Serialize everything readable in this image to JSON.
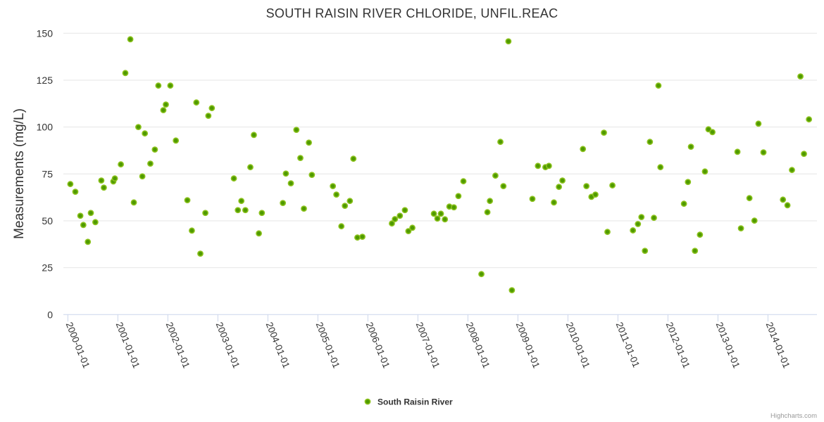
{
  "chart_data": {
    "type": "scatter",
    "title": "SOUTH RAISIN RIVER CHLORIDE, UNFIL.REAC",
    "xlabel": "",
    "ylabel": "Measurements (mg/L)",
    "ylim": [
      0,
      150
    ],
    "yticks": [
      0,
      25,
      50,
      75,
      100,
      125,
      150
    ],
    "xlim": [
      1999.911,
      2014.98
    ],
    "xticks": [
      2000,
      2001,
      2002,
      2003,
      2004,
      2005,
      2006,
      2007,
      2008,
      2009,
      2010,
      2011,
      2012,
      2013,
      2014
    ],
    "xtick_labels": [
      "2000-01-01",
      "2001-01-01",
      "2002-01-01",
      "2003-01-01",
      "2004-01-01",
      "2005-01-01",
      "2006-01-01",
      "2007-01-01",
      "2008-01-01",
      "2009-01-01",
      "2010-01-01",
      "2011-01-01",
      "2012-01-01",
      "2013-01-01",
      "2014-01-01"
    ],
    "grid": true,
    "legend_position": "bottom-center",
    "colors": {
      "marker_fill": "#4f9a00",
      "marker_line": "#8cc21e",
      "grid": "#e6e6e6",
      "axis": "#ccd6eb"
    },
    "series": [
      {
        "name": "South Raisin River",
        "points": [
          [
            2000.05,
            69.6
          ],
          [
            2000.15,
            65.5
          ],
          [
            2000.25,
            52.7
          ],
          [
            2000.31,
            47.8
          ],
          [
            2000.4,
            38.8
          ],
          [
            2000.46,
            54.2
          ],
          [
            2000.55,
            49.3
          ],
          [
            2000.67,
            71.5
          ],
          [
            2000.72,
            67.7
          ],
          [
            2000.91,
            71.0
          ],
          [
            2000.94,
            72.6
          ],
          [
            2001.06,
            80.1
          ],
          [
            2001.15,
            128.8
          ],
          [
            2001.25,
            146.8
          ],
          [
            2001.32,
            59.8
          ],
          [
            2001.41,
            100.0
          ],
          [
            2001.49,
            73.7
          ],
          [
            2001.54,
            96.6
          ],
          [
            2001.65,
            80.5
          ],
          [
            2001.74,
            88.0
          ],
          [
            2001.81,
            122.1
          ],
          [
            2001.91,
            109.0
          ],
          [
            2001.96,
            112.0
          ],
          [
            2002.05,
            122.1
          ],
          [
            2002.16,
            92.8
          ],
          [
            2002.39,
            61.0
          ],
          [
            2002.48,
            44.8
          ],
          [
            2002.57,
            113.1
          ],
          [
            2002.65,
            32.5
          ],
          [
            2002.75,
            54.2
          ],
          [
            2002.81,
            106.0
          ],
          [
            2002.88,
            110.1
          ],
          [
            2003.32,
            72.6
          ],
          [
            2003.4,
            55.7
          ],
          [
            2003.47,
            60.6
          ],
          [
            2003.55,
            55.7
          ],
          [
            2003.65,
            78.6
          ],
          [
            2003.72,
            95.8
          ],
          [
            2003.82,
            43.3
          ],
          [
            2003.88,
            54.2
          ],
          [
            2004.3,
            59.5
          ],
          [
            2004.36,
            75.2
          ],
          [
            2004.46,
            70.0
          ],
          [
            2004.57,
            98.5
          ],
          [
            2004.65,
            83.5
          ],
          [
            2004.72,
            56.5
          ],
          [
            2004.82,
            91.7
          ],
          [
            2004.88,
            74.5
          ],
          [
            2005.3,
            68.5
          ],
          [
            2005.37,
            64.0
          ],
          [
            2005.47,
            47.1
          ],
          [
            2005.54,
            58.0
          ],
          [
            2005.64,
            60.6
          ],
          [
            2005.71,
            83.1
          ],
          [
            2005.79,
            41.1
          ],
          [
            2005.89,
            41.5
          ],
          [
            2006.48,
            48.6
          ],
          [
            2006.54,
            50.9
          ],
          [
            2006.64,
            52.7
          ],
          [
            2006.74,
            55.7
          ],
          [
            2006.81,
            44.5
          ],
          [
            2006.89,
            46.3
          ],
          [
            2007.32,
            53.8
          ],
          [
            2007.39,
            51.2
          ],
          [
            2007.46,
            53.8
          ],
          [
            2007.54,
            50.8
          ],
          [
            2007.63,
            57.6
          ],
          [
            2007.72,
            57.2
          ],
          [
            2007.81,
            63.2
          ],
          [
            2007.91,
            71.1
          ],
          [
            2008.27,
            21.6
          ],
          [
            2008.39,
            54.6
          ],
          [
            2008.44,
            60.6
          ],
          [
            2008.55,
            74.1
          ],
          [
            2008.65,
            92.1
          ],
          [
            2008.71,
            68.5
          ],
          [
            2008.81,
            145.7
          ],
          [
            2008.88,
            13.0
          ],
          [
            2009.29,
            61.7
          ],
          [
            2009.4,
            79.3
          ],
          [
            2009.55,
            78.6
          ],
          [
            2009.62,
            79.3
          ],
          [
            2009.72,
            59.8
          ],
          [
            2009.82,
            68.1
          ],
          [
            2009.89,
            71.5
          ],
          [
            2010.3,
            88.3
          ],
          [
            2010.37,
            68.5
          ],
          [
            2010.47,
            62.8
          ],
          [
            2010.55,
            64.0
          ],
          [
            2010.72,
            97.0
          ],
          [
            2010.79,
            44.1
          ],
          [
            2010.89,
            68.9
          ],
          [
            2011.3,
            44.9
          ],
          [
            2011.4,
            48.3
          ],
          [
            2011.47,
            52.0
          ],
          [
            2011.54,
            34.0
          ],
          [
            2011.64,
            92.1
          ],
          [
            2011.72,
            51.6
          ],
          [
            2011.81,
            122.1
          ],
          [
            2011.85,
            78.6
          ],
          [
            2012.32,
            59.1
          ],
          [
            2012.4,
            70.7
          ],
          [
            2012.46,
            89.5
          ],
          [
            2012.54,
            34.0
          ],
          [
            2012.64,
            42.6
          ],
          [
            2012.74,
            76.3
          ],
          [
            2012.81,
            98.8
          ],
          [
            2012.89,
            97.3
          ],
          [
            2013.39,
            86.8
          ],
          [
            2013.46,
            46.0
          ],
          [
            2013.63,
            62.1
          ],
          [
            2013.73,
            50.1
          ],
          [
            2013.81,
            101.8
          ],
          [
            2013.91,
            86.5
          ],
          [
            2014.3,
            61.3
          ],
          [
            2014.39,
            58.3
          ],
          [
            2014.48,
            77.1
          ],
          [
            2014.65,
            127.0
          ],
          [
            2014.72,
            85.7
          ],
          [
            2014.82,
            104.1
          ]
        ]
      }
    ],
    "credits": "Highcharts.com"
  }
}
